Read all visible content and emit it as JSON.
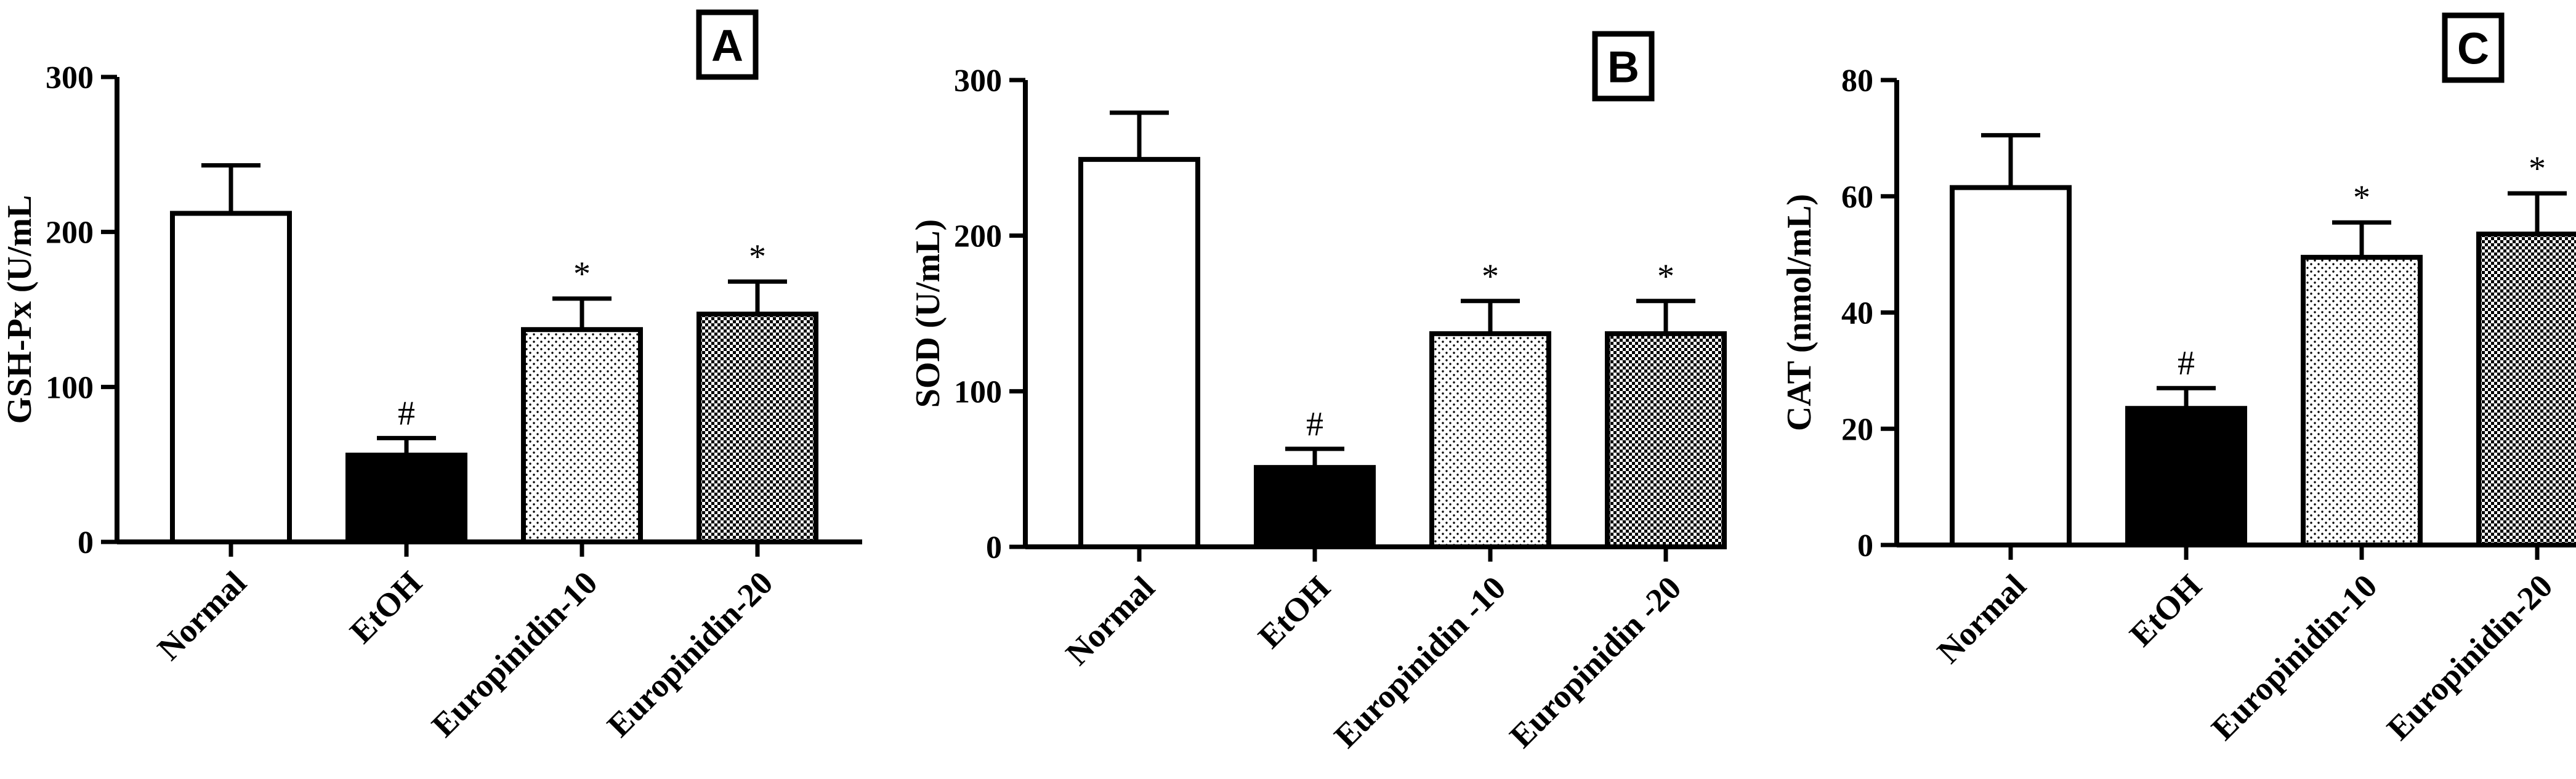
{
  "chart_data": [
    {
      "panel": "A",
      "type": "bar",
      "ylabel": "GSH-Px (U/mL",
      "ylim": [
        0,
        300
      ],
      "yticks": [
        "0",
        "100",
        "200",
        "300"
      ],
      "categories": [
        "Normal",
        "EtOH",
        "Europinidin-10",
        "Europinidin-20"
      ],
      "values": [
        212,
        56,
        137,
        147
      ],
      "errors": [
        31,
        11,
        20,
        21
      ],
      "annotations": [
        "",
        "#",
        "*",
        "*"
      ],
      "fills": [
        "white",
        "black",
        "dots",
        "checker"
      ]
    },
    {
      "panel": "B",
      "type": "bar",
      "ylabel": "SOD (U/mL)",
      "ylim": [
        0,
        300
      ],
      "yticks": [
        "0",
        "100",
        "200",
        "300"
      ],
      "categories": [
        "Normal",
        "EtOH",
        "Europinidin -10",
        "Europinidin -20"
      ],
      "values": [
        249,
        51,
        137,
        137
      ],
      "errors": [
        30,
        12,
        21,
        21
      ],
      "annotations": [
        "",
        "#",
        "*",
        "*"
      ],
      "fills": [
        "white",
        "black",
        "dots",
        "checker"
      ]
    },
    {
      "panel": "C",
      "type": "bar",
      "ylabel": "CAT (nmol/mL)",
      "ylim": [
        0,
        80
      ],
      "yticks": [
        "0",
        "20",
        "40",
        "60",
        "80"
      ],
      "categories": [
        "Normal",
        "EtOH",
        "Europinidin-10",
        "Europinidin-20"
      ],
      "values": [
        61.5,
        23.5,
        49.5,
        53.5
      ],
      "errors": [
        9,
        3.5,
        6,
        7
      ],
      "annotations": [
        "",
        "#",
        "*",
        "*"
      ],
      "fills": [
        "white",
        "black",
        "dots",
        "checker"
      ]
    }
  ]
}
